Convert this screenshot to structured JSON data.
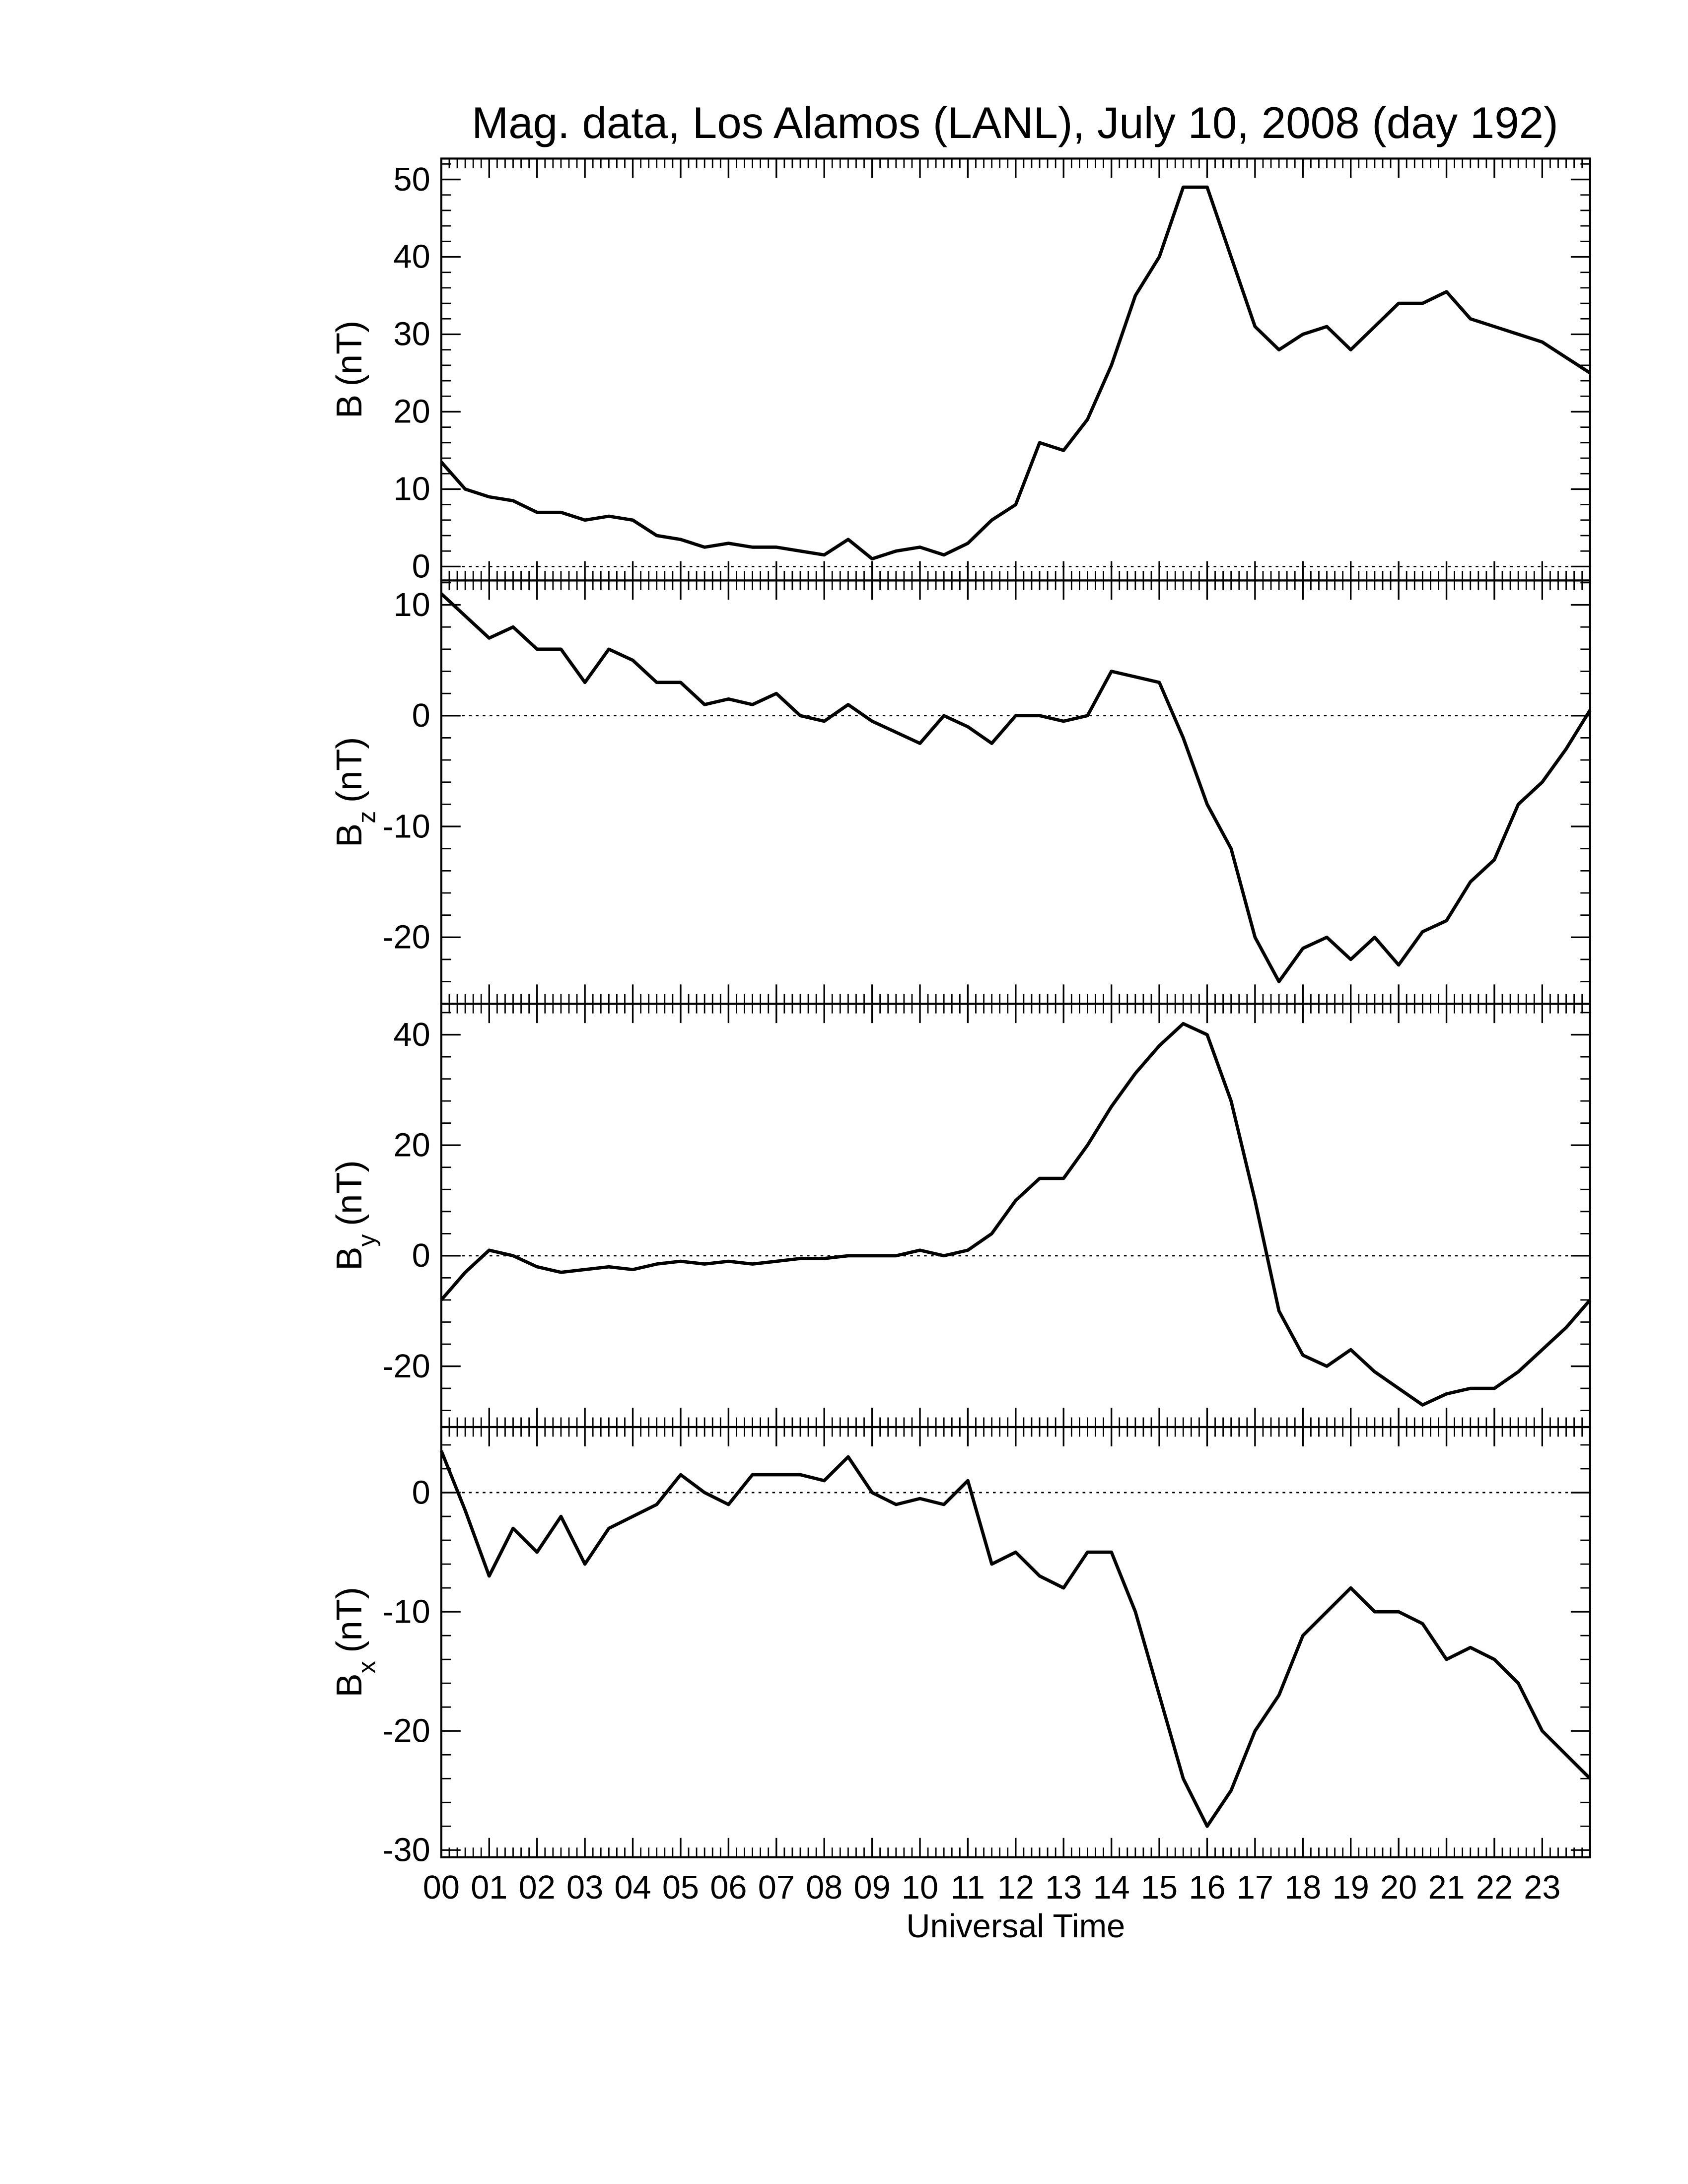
{
  "chart_data": [
    {
      "type": "line",
      "title": "Mag. data, Los Alamos (LANL), July 10, 2008 (day 192)",
      "ylabel": {
        "base": "B",
        "unit": "(nT)"
      },
      "x": [
        0,
        0.5,
        1,
        1.5,
        2,
        2.5,
        3,
        3.5,
        4,
        4.5,
        5,
        5.5,
        6,
        6.5,
        7,
        7.5,
        8,
        8.5,
        9,
        9.5,
        10,
        10.5,
        11,
        11.5,
        12,
        12.5,
        13,
        13.5,
        14,
        14.5,
        15,
        15.5,
        16,
        16.5,
        17,
        17.5,
        18,
        18.5,
        19,
        19.5,
        20,
        20.5,
        21,
        21.5,
        22,
        22.5,
        23,
        23.5,
        24
      ],
      "series": [
        {
          "name": "B",
          "color": "#000000",
          "values": [
            13.5,
            10,
            9,
            8.5,
            7,
            7,
            6,
            6.5,
            6,
            4,
            3.5,
            2.5,
            3,
            2.5,
            2.5,
            2,
            1.5,
            3.5,
            1,
            2,
            2.5,
            1.5,
            3,
            6,
            8,
            16,
            15,
            19,
            26,
            35,
            40,
            49,
            49,
            40,
            31,
            28,
            30,
            31,
            28,
            31,
            34,
            34,
            35.5,
            32,
            31,
            30,
            29,
            27,
            25
          ]
        }
      ],
      "xlim": [
        0,
        24
      ],
      "ylim": [
        -1.8,
        52.7
      ],
      "yticks": [
        0,
        10,
        20,
        30,
        40,
        50
      ],
      "zero_line": true,
      "xticks": [
        {
          "value": 0,
          "label": "00"
        },
        {
          "value": 1,
          "label": "01"
        },
        {
          "value": 2,
          "label": "02"
        },
        {
          "value": 3,
          "label": "03"
        },
        {
          "value": 4,
          "label": "04"
        },
        {
          "value": 5,
          "label": "05"
        },
        {
          "value": 6,
          "label": "06"
        },
        {
          "value": 7,
          "label": "07"
        },
        {
          "value": 8,
          "label": "08"
        },
        {
          "value": 9,
          "label": "09"
        },
        {
          "value": 10,
          "label": "10"
        },
        {
          "value": 11,
          "label": "11"
        },
        {
          "value": 12,
          "label": "12"
        },
        {
          "value": 13,
          "label": "13"
        },
        {
          "value": 14,
          "label": "14"
        },
        {
          "value": 15,
          "label": "15"
        },
        {
          "value": 16,
          "label": "16"
        },
        {
          "value": 17,
          "label": "17"
        },
        {
          "value": 18,
          "label": "18"
        },
        {
          "value": 19,
          "label": "19"
        },
        {
          "value": 20,
          "label": "20"
        },
        {
          "value": 21,
          "label": "21"
        },
        {
          "value": 22,
          "label": "22"
        },
        {
          "value": 23,
          "label": "23"
        }
      ]
    },
    {
      "type": "line",
      "ylabel": {
        "base": "B",
        "sub": "z",
        "unit": "(nT)"
      },
      "x": [
        0,
        0.5,
        1,
        1.5,
        2,
        2.5,
        3,
        3.5,
        4,
        4.5,
        5,
        5.5,
        6,
        6.5,
        7,
        7.5,
        8,
        8.5,
        9,
        9.5,
        10,
        10.5,
        11,
        11.5,
        12,
        12.5,
        13,
        13.5,
        14,
        14.5,
        15,
        15.5,
        16,
        16.5,
        17,
        17.5,
        18,
        18.5,
        19,
        19.5,
        20,
        20.5,
        21,
        21.5,
        22,
        22.5,
        23,
        23.5,
        24
      ],
      "series": [
        {
          "name": "Bz",
          "color": "#000000",
          "values": [
            11,
            9,
            7,
            8,
            6,
            6,
            3,
            6,
            5,
            3,
            3,
            1,
            1.5,
            1,
            2,
            0,
            -0.5,
            1,
            -0.5,
            -1.5,
            -2.5,
            0,
            -1,
            -2.5,
            0,
            0,
            -0.5,
            0,
            4,
            3.5,
            3,
            -2,
            -8,
            -12,
            -20,
            -24,
            -21,
            -20,
            -22,
            -20,
            -22.5,
            -19.5,
            -18.5,
            -15,
            -13,
            -8,
            -6,
            -3,
            0.5
          ]
        }
      ],
      "xlim": [
        0,
        24
      ],
      "ylim": [
        -26,
        12.2
      ],
      "yticks": [
        -20,
        -10,
        0,
        10
      ],
      "zero_line": true,
      "xticks": [
        {
          "value": 0,
          "label": "00"
        },
        {
          "value": 1,
          "label": "01"
        },
        {
          "value": 2,
          "label": "02"
        },
        {
          "value": 3,
          "label": "03"
        },
        {
          "value": 4,
          "label": "04"
        },
        {
          "value": 5,
          "label": "05"
        },
        {
          "value": 6,
          "label": "06"
        },
        {
          "value": 7,
          "label": "07"
        },
        {
          "value": 8,
          "label": "08"
        },
        {
          "value": 9,
          "label": "09"
        },
        {
          "value": 10,
          "label": "10"
        },
        {
          "value": 11,
          "label": "11"
        },
        {
          "value": 12,
          "label": "12"
        },
        {
          "value": 13,
          "label": "13"
        },
        {
          "value": 14,
          "label": "14"
        },
        {
          "value": 15,
          "label": "15"
        },
        {
          "value": 16,
          "label": "16"
        },
        {
          "value": 17,
          "label": "17"
        },
        {
          "value": 18,
          "label": "18"
        },
        {
          "value": 19,
          "label": "19"
        },
        {
          "value": 20,
          "label": "20"
        },
        {
          "value": 21,
          "label": "21"
        },
        {
          "value": 22,
          "label": "22"
        },
        {
          "value": 23,
          "label": "23"
        }
      ]
    },
    {
      "type": "line",
      "ylabel": {
        "base": "B",
        "sub": "y",
        "unit": "(nT)"
      },
      "x": [
        0,
        0.5,
        1,
        1.5,
        2,
        2.5,
        3,
        3.5,
        4,
        4.5,
        5,
        5.5,
        6,
        6.5,
        7,
        7.5,
        8,
        8.5,
        9,
        9.5,
        10,
        10.5,
        11,
        11.5,
        12,
        12.5,
        13,
        13.5,
        14,
        14.5,
        15,
        15.5,
        16,
        16.5,
        17,
        17.5,
        18,
        18.5,
        19,
        19.5,
        20,
        20.5,
        21,
        21.5,
        22,
        22.5,
        23,
        23.5,
        24
      ],
      "series": [
        {
          "name": "By",
          "color": "#000000",
          "values": [
            -8,
            -3,
            1,
            0,
            -2,
            -3,
            -2.5,
            -2,
            -2.5,
            -1.5,
            -1,
            -1.5,
            -1,
            -1.5,
            -1,
            -0.5,
            -0.5,
            0,
            0,
            0,
            1,
            0,
            1,
            4,
            10,
            14,
            14,
            20,
            27,
            33,
            38,
            42,
            40,
            28,
            10,
            -10,
            -18,
            -20,
            -17,
            -21,
            -24,
            -27,
            -25,
            -24,
            -24,
            -21,
            -17,
            -13,
            -8
          ]
        }
      ],
      "xlim": [
        0,
        24
      ],
      "ylim": [
        -31,
        45.6
      ],
      "yticks": [
        -20,
        0,
        20,
        40
      ],
      "zero_line": true,
      "xticks": [
        {
          "value": 0,
          "label": "00"
        },
        {
          "value": 1,
          "label": "01"
        },
        {
          "value": 2,
          "label": "02"
        },
        {
          "value": 3,
          "label": "03"
        },
        {
          "value": 4,
          "label": "04"
        },
        {
          "value": 5,
          "label": "05"
        },
        {
          "value": 6,
          "label": "06"
        },
        {
          "value": 7,
          "label": "07"
        },
        {
          "value": 8,
          "label": "08"
        },
        {
          "value": 9,
          "label": "09"
        },
        {
          "value": 10,
          "label": "10"
        },
        {
          "value": 11,
          "label": "11"
        },
        {
          "value": 12,
          "label": "12"
        },
        {
          "value": 13,
          "label": "13"
        },
        {
          "value": 14,
          "label": "14"
        },
        {
          "value": 15,
          "label": "15"
        },
        {
          "value": 16,
          "label": "16"
        },
        {
          "value": 17,
          "label": "17"
        },
        {
          "value": 18,
          "label": "18"
        },
        {
          "value": 19,
          "label": "19"
        },
        {
          "value": 20,
          "label": "20"
        },
        {
          "value": 21,
          "label": "21"
        },
        {
          "value": 22,
          "label": "22"
        },
        {
          "value": 23,
          "label": "23"
        }
      ]
    },
    {
      "type": "line",
      "ylabel": {
        "base": "B",
        "sub": "x",
        "unit": "(nT)"
      },
      "xlabel": "Universal Time",
      "show_xtick_labels": true,
      "x": [
        0,
        0.5,
        1,
        1.5,
        2,
        2.5,
        3,
        3.5,
        4,
        4.5,
        5,
        5.5,
        6,
        6.5,
        7,
        7.5,
        8,
        8.5,
        9,
        9.5,
        10,
        10.5,
        11,
        11.5,
        12,
        12.5,
        13,
        13.5,
        14,
        14.5,
        15,
        15.5,
        16,
        16.5,
        17,
        17.5,
        18,
        18.5,
        19,
        19.5,
        20,
        20.5,
        21,
        21.5,
        22,
        22.5,
        23,
        23.5,
        24
      ],
      "series": [
        {
          "name": "Bx",
          "color": "#000000",
          "values": [
            3.5,
            -1.5,
            -7,
            -3,
            -5,
            -2,
            -6,
            -3,
            -2,
            -1,
            1.5,
            0,
            -1,
            1.5,
            1.5,
            1.5,
            1,
            3,
            0,
            -1,
            -0.5,
            -1,
            1,
            -6,
            -5,
            -7,
            -8,
            -5,
            -5,
            -10,
            -17,
            -24,
            -28,
            -25,
            -20,
            -17,
            -12,
            -10,
            -8,
            -10,
            -10,
            -11,
            -14,
            -13,
            -14,
            -16,
            -20,
            -22,
            -24
          ]
        }
      ],
      "xlim": [
        0,
        24
      ],
      "ylim": [
        -30.6,
        5.5
      ],
      "yticks": [
        -30,
        -20,
        -10,
        0
      ],
      "zero_line": true,
      "xticks": [
        {
          "value": 0,
          "label": "00"
        },
        {
          "value": 1,
          "label": "01"
        },
        {
          "value": 2,
          "label": "02"
        },
        {
          "value": 3,
          "label": "03"
        },
        {
          "value": 4,
          "label": "04"
        },
        {
          "value": 5,
          "label": "05"
        },
        {
          "value": 6,
          "label": "06"
        },
        {
          "value": 7,
          "label": "07"
        },
        {
          "value": 8,
          "label": "08"
        },
        {
          "value": 9,
          "label": "09"
        },
        {
          "value": 10,
          "label": "10"
        },
        {
          "value": 11,
          "label": "11"
        },
        {
          "value": 12,
          "label": "12"
        },
        {
          "value": 13,
          "label": "13"
        },
        {
          "value": 14,
          "label": "14"
        },
        {
          "value": 15,
          "label": "15"
        },
        {
          "value": 16,
          "label": "16"
        },
        {
          "value": 17,
          "label": "17"
        },
        {
          "value": 18,
          "label": "18"
        },
        {
          "value": 19,
          "label": "19"
        },
        {
          "value": 20,
          "label": "20"
        },
        {
          "value": 21,
          "label": "21"
        },
        {
          "value": 22,
          "label": "22"
        },
        {
          "value": 23,
          "label": "23"
        }
      ]
    }
  ]
}
